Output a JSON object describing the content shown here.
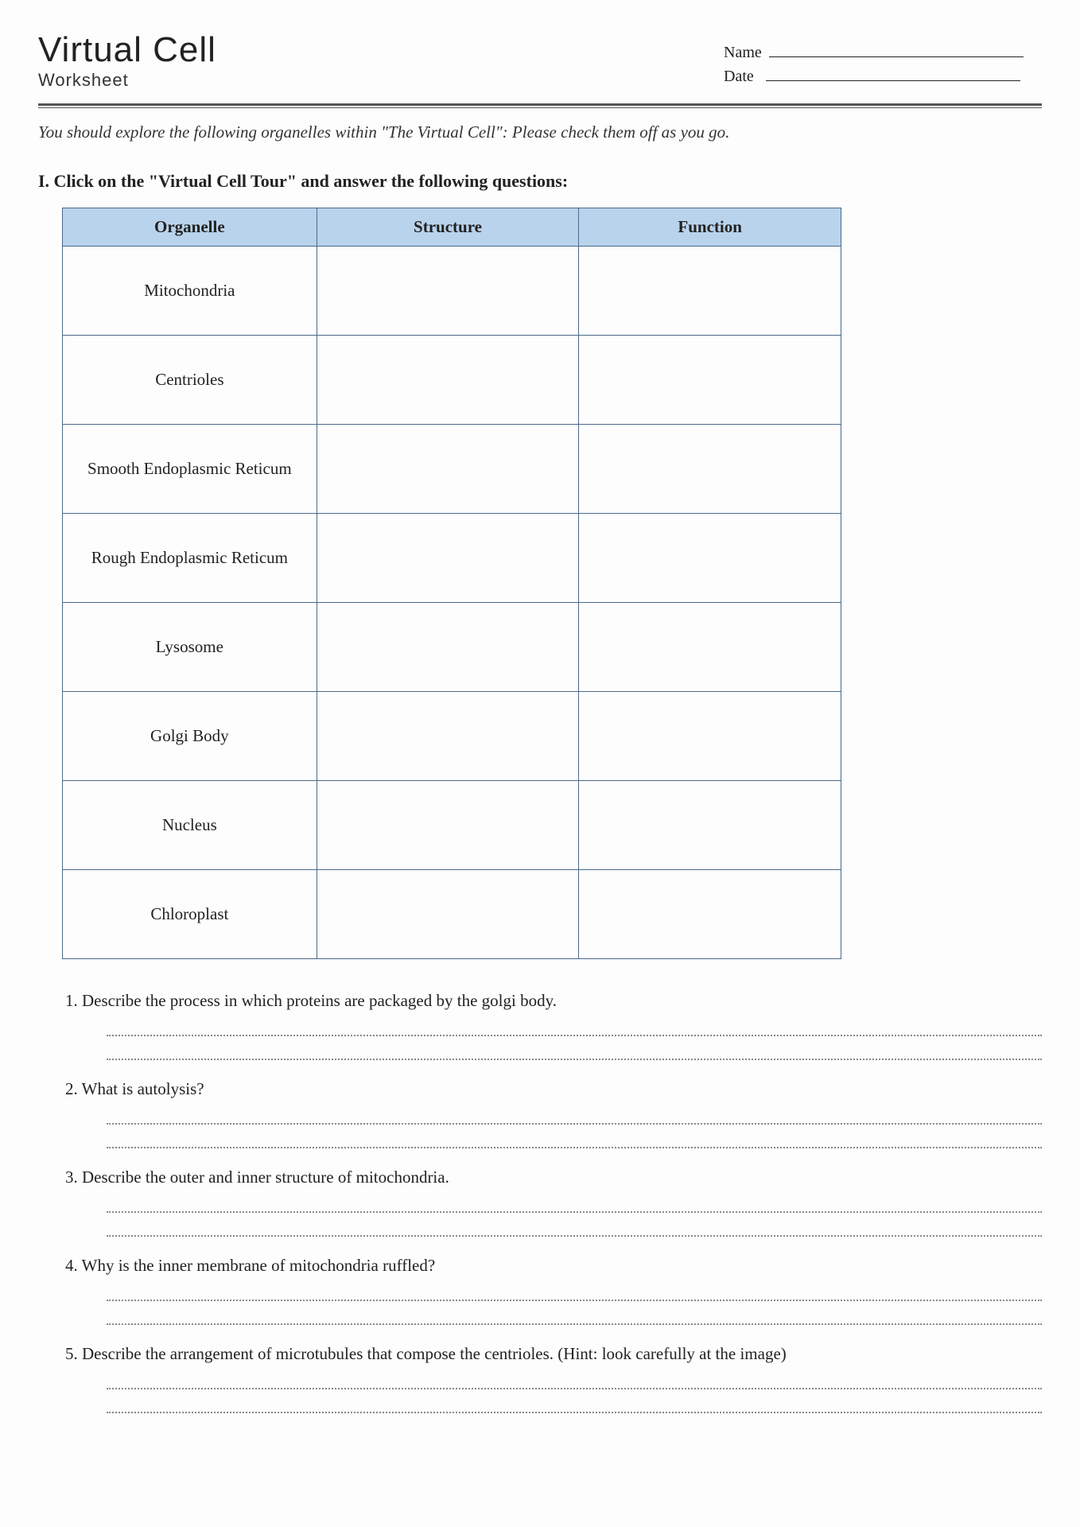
{
  "header": {
    "title_main": "Virtual Cell",
    "title_sub": "Worksheet",
    "name_label": "Name",
    "date_label": "Date"
  },
  "intro_text": "You should explore the following organelles within \"The Virtual Cell\": Please check them off as you go.",
  "section_heading": "I. Click on the \"Virtual Cell Tour\" and answer the following questions:",
  "table": {
    "header_bg": "#b9d3ec",
    "border_color": "#4a6a8a",
    "columns": [
      "Organelle",
      "Structure",
      "Function"
    ],
    "rows": [
      [
        "Mitochondria",
        "",
        ""
      ],
      [
        "Centrioles",
        "",
        ""
      ],
      [
        "Smooth Endoplasmic Reticum",
        "",
        ""
      ],
      [
        "Rough Endoplasmic Reticum",
        "",
        ""
      ],
      [
        "Lysosome",
        "",
        ""
      ],
      [
        "Golgi Body",
        "",
        ""
      ],
      [
        "Nucleus",
        "",
        ""
      ],
      [
        "Chloroplast",
        "",
        ""
      ]
    ]
  },
  "questions": [
    "1. Describe the process in which proteins are packaged by the golgi body.",
    "2. What is autolysis?",
    "3. Describe the outer and inner structure of mitochondria.",
    "4. Why is the inner membrane of mitochondria ruffled?",
    "5. Describe the arrangement of microtubules that compose the centrioles. (Hint: look carefully at the image)"
  ],
  "answer_lines_per_question": 2,
  "styling": {
    "page_bg": "#fdfdfd",
    "text_color": "#222222",
    "dotted_color": "#888888",
    "title_font": "Futura / Century Gothic",
    "body_font": "Georgia serif",
    "title_fontsize_pt": 33,
    "body_fontsize_pt": 16
  }
}
